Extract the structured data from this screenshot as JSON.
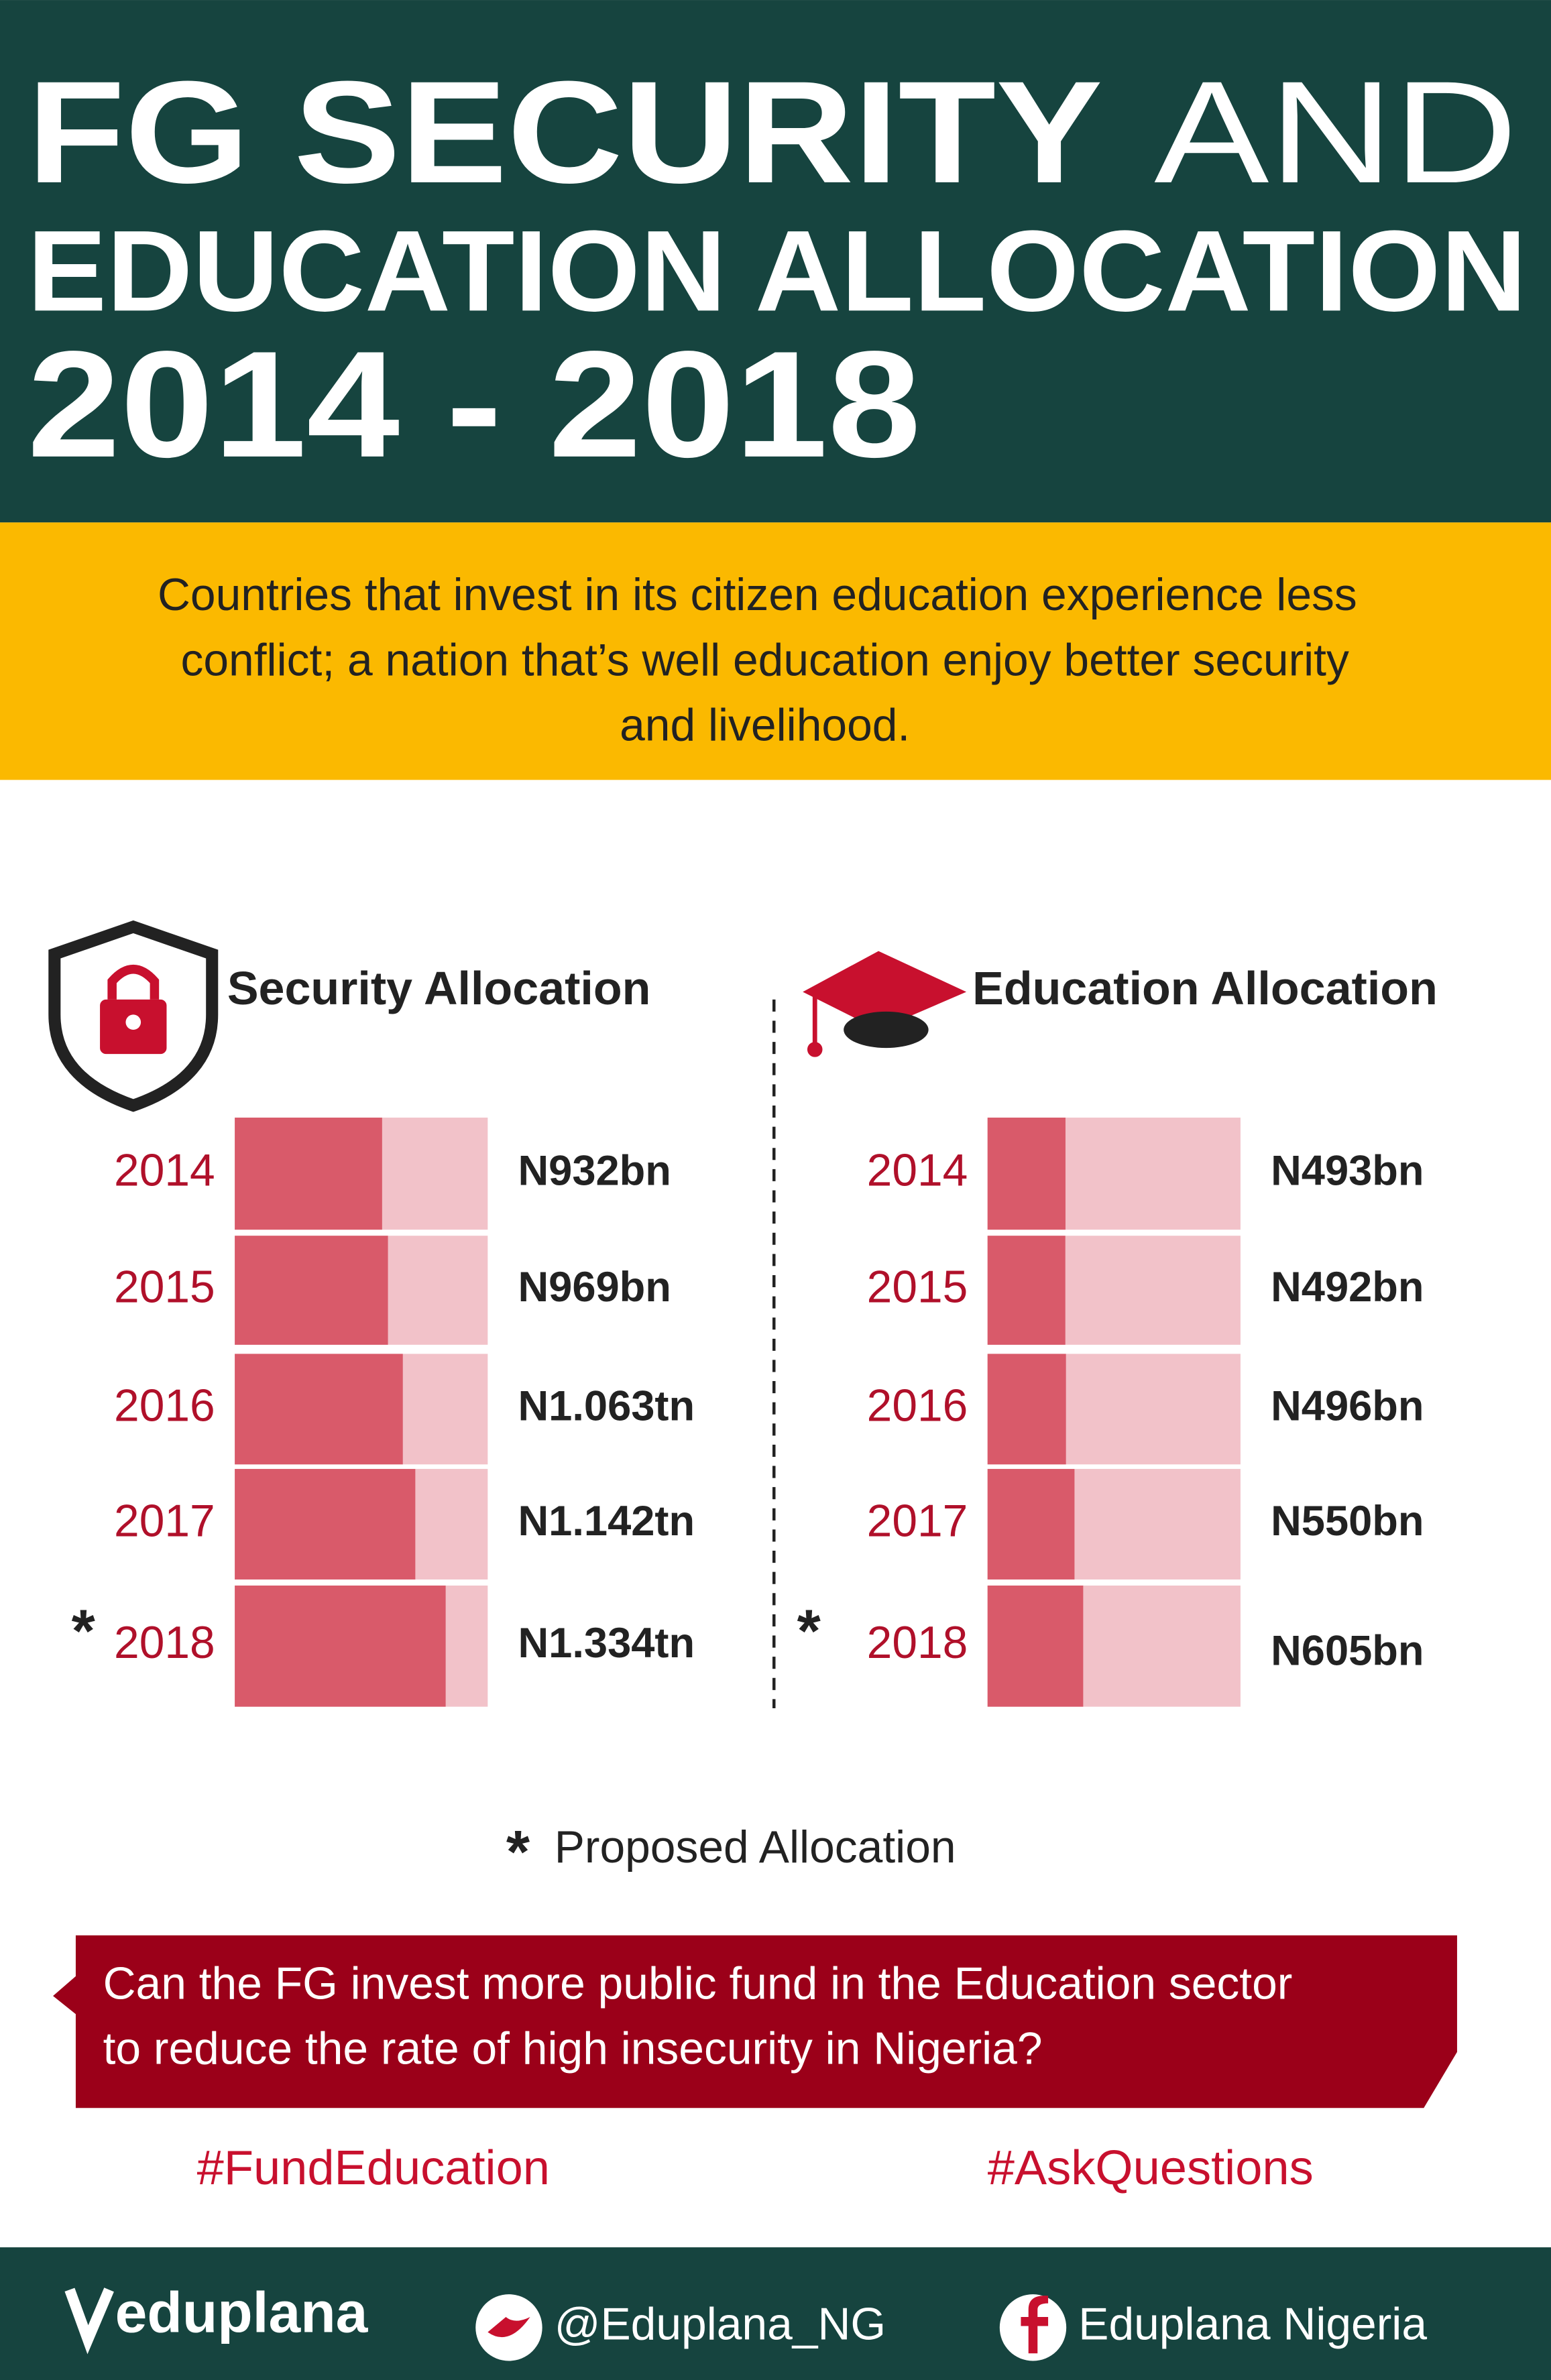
{
  "header": {
    "title_lines": [
      "FG SECURITY",
      "AND",
      "EDUCATION  ALLOCATION",
      "2014 - 2018"
    ]
  },
  "intro": [
    "Countries that invest in its citizen education experience less",
    "conflict; a nation that’s well education enjoy better security",
    "and livelihood."
  ],
  "chart_data": [
    {
      "type": "bar",
      "orientation": "horizontal",
      "title": "Security Allocation",
      "categories": [
        "2014",
        "2015",
        "2016",
        "2017",
        "2018"
      ],
      "values": [
        932,
        969,
        1063,
        1142,
        1334
      ],
      "value_labels": [
        "N932bn",
        "N969bn",
        "N1.063tn",
        "N1.142tn",
        "N1.334tn"
      ],
      "xlim": [
        0,
        1600
      ],
      "color": "#d95a6a",
      "track_color": "#f2c2c9"
    },
    {
      "type": "bar",
      "orientation": "horizontal",
      "title": "Education Allocation",
      "categories": [
        "2014",
        "2015",
        "2016",
        "2017",
        "2018"
      ],
      "values": [
        493,
        492,
        496,
        550,
        605
      ],
      "value_labels": [
        "N493bn",
        "N492bn",
        "N496bn",
        "N550bn",
        "N605bn"
      ],
      "xlim": [
        0,
        1600
      ],
      "color": "#d95a6a",
      "track_color": "#f2c2c9"
    }
  ],
  "footnote": {
    "symbol": "*",
    "text": "Proposed Allocation"
  },
  "question": [
    "Can the FG invest more public fund in the Education sector",
    "to reduce the rate of high insecurity in Nigeria?"
  ],
  "hashtags": [
    "#FundEducation",
    "#AskQuestions"
  ],
  "footer": {
    "brand": "eduplana",
    "twitter": "@Eduplana_NG",
    "facebook": "Eduplana Nigeria"
  }
}
